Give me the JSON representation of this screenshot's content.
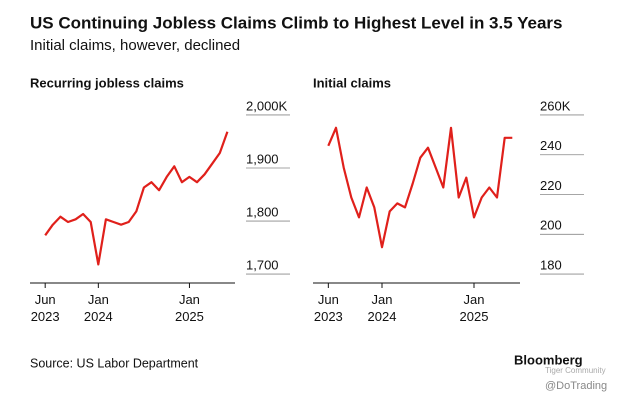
{
  "title": "US Continuing Jobless Claims Climb to Highest Level in 3.5 Years",
  "subtitle": "Initial claims, however, declined",
  "source": "Source: US Labor Department",
  "brand": "Bloomberg",
  "watermark": "Tiger Community",
  "handle": "@DoTrading",
  "chart_data": [
    {
      "type": "line",
      "title": "Recurring jobless claims",
      "x": [
        "2023-06",
        "2023-07",
        "2023-08",
        "2023-09",
        "2023-10",
        "2023-11",
        "2023-12",
        "2024-01",
        "2024-02",
        "2024-03",
        "2024-04",
        "2024-05",
        "2024-06",
        "2024-07",
        "2024-08",
        "2024-09",
        "2024-10",
        "2024-11",
        "2024-12",
        "2025-01",
        "2025-02",
        "2025-03",
        "2025-04",
        "2025-05",
        "2025-06"
      ],
      "series": [
        {
          "color": "#e0201b",
          "values": [
            1760,
            1780,
            1795,
            1785,
            1790,
            1800,
            1785,
            1705,
            1790,
            1785,
            1780,
            1785,
            1805,
            1850,
            1860,
            1845,
            1870,
            1890,
            1860,
            1870,
            1860,
            1875,
            1895,
            1915,
            1955
          ]
        }
      ],
      "xlim": [
        "2023-04",
        "2025-07"
      ],
      "xticks": [
        {
          "value": "2023-06",
          "label": "Jun\n2023"
        },
        {
          "value": "2024-01",
          "label": "Jan\n2024"
        },
        {
          "value": "2025-01",
          "label": "Jan\n2025"
        }
      ],
      "ylim": [
        1670,
        2015
      ],
      "yticks": [
        {
          "value": 1700,
          "label": "1,700"
        },
        {
          "value": 1800,
          "label": "1,800"
        },
        {
          "value": 1900,
          "label": "1,900"
        },
        {
          "value": 2000,
          "label": "2,000K"
        }
      ]
    },
    {
      "type": "line",
      "title": "Initial claims",
      "x": [
        "2023-06",
        "2023-07",
        "2023-08",
        "2023-09",
        "2023-10",
        "2023-11",
        "2023-12",
        "2024-01",
        "2024-02",
        "2024-03",
        "2024-04",
        "2024-05",
        "2024-06",
        "2024-07",
        "2024-08",
        "2024-09",
        "2024-10",
        "2024-11",
        "2024-12",
        "2025-01",
        "2025-02",
        "2025-03",
        "2025-04",
        "2025-05",
        "2025-06"
      ],
      "series": [
        {
          "color": "#e0201b",
          "values": [
            241,
            250,
            230,
            215,
            205,
            220,
            210,
            190,
            208,
            212,
            210,
            222,
            235,
            240,
            230,
            220,
            250,
            215,
            225,
            205,
            215,
            220,
            215,
            245,
            245
          ]
        }
      ],
      "xlim": [
        "2023-04",
        "2025-07"
      ],
      "xticks": [
        {
          "value": "2023-06",
          "label": "Jun\n2023"
        },
        {
          "value": "2024-01",
          "label": "Jan\n2024"
        },
        {
          "value": "2025-01",
          "label": "Jan\n2025"
        }
      ],
      "ylim": [
        172,
        264
      ],
      "yticks": [
        180,
        200,
        220,
        240,
        {
          "value": 260,
          "label": "260K"
        }
      ]
    }
  ]
}
